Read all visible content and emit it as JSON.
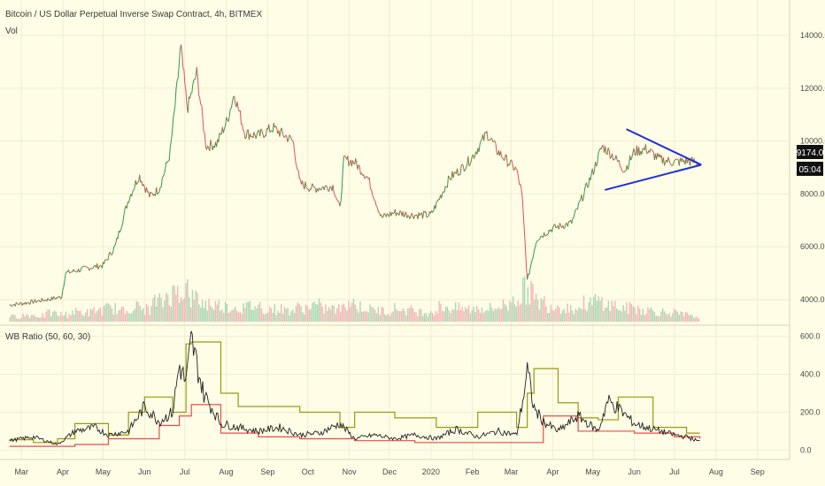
{
  "header": {
    "symbol_title": "Bitcoin / US Dollar Perpetual Inverse Swap Contract, 4h, BITMEX",
    "volume_label": "Vol",
    "indicator_label": "WB Ratio (50, 60, 30)"
  },
  "price_badge": {
    "value": "9174.0",
    "countdown": "05:04"
  },
  "colors": {
    "background": "#fffde6",
    "up": "#2e9e44",
    "down": "#e0505a",
    "trendline": "#1f2fd6",
    "indicator_main": "#222222",
    "indicator_upper": "#9a9a10",
    "indicator_lower": "#e84d4d"
  },
  "x_axis_labels": [
    "Mar",
    "Apr",
    "May",
    "Jun",
    "Jul",
    "Aug",
    "Sep",
    "Oct",
    "Nov",
    "Dec",
    "2020",
    "Feb",
    "Mar",
    "Apr",
    "May",
    "Jun",
    "Jul",
    "Aug",
    "Sep"
  ],
  "chart_data": [
    {
      "type": "line",
      "title": "Bitcoin / US Dollar Perpetual Inverse Swap Contract, 4h, BITMEX",
      "y_axis_ticks": [
        "4000.0",
        "6000.0",
        "8000.0",
        "10000.0",
        "12000.0",
        "14000.0"
      ],
      "ylim": [
        3300,
        14400
      ],
      "x": [
        "2019-02-20",
        "2019-03-01",
        "2019-03-20",
        "2019-03-31",
        "2019-04-03",
        "2019-04-20",
        "2019-05-01",
        "2019-05-10",
        "2019-05-20",
        "2019-05-28",
        "2019-06-05",
        "2019-06-12",
        "2019-06-20",
        "2019-06-26",
        "2019-06-28",
        "2019-07-03",
        "2019-07-10",
        "2019-07-17",
        "2019-07-25",
        "2019-08-02",
        "2019-08-07",
        "2019-08-15",
        "2019-08-25",
        "2019-09-05",
        "2019-09-20",
        "2019-09-25",
        "2019-10-05",
        "2019-10-20",
        "2019-10-25",
        "2019-10-28",
        "2019-11-05",
        "2019-11-15",
        "2019-11-25",
        "2019-12-05",
        "2019-12-18",
        "2020-01-01",
        "2020-01-15",
        "2020-01-25",
        "2020-02-01",
        "2020-02-12",
        "2020-02-20",
        "2020-03-05",
        "2020-03-09",
        "2020-03-12",
        "2020-03-13",
        "2020-03-20",
        "2020-04-01",
        "2020-04-15",
        "2020-04-30",
        "2020-05-08",
        "2020-05-15",
        "2020-05-25",
        "2020-06-01",
        "2020-06-10",
        "2020-06-20",
        "2020-07-01",
        "2020-07-10",
        "2020-07-20"
      ],
      "series": [
        {
          "values": [
            3800,
            3850,
            4000,
            4100,
            5000,
            5200,
            5300,
            6000,
            7800,
            8700,
            7900,
            8200,
            9500,
            12400,
            13600,
            11200,
            12600,
            9800,
            9900,
            10800,
            11800,
            10300,
            10200,
            10500,
            10000,
            8400,
            8200,
            8300,
            7400,
            9300,
            9200,
            8600,
            7100,
            7300,
            7200,
            7200,
            8600,
            9000,
            9400,
            10300,
            9600,
            8900,
            8000,
            5600,
            4700,
            6300,
            6700,
            6900,
            8700,
            9800,
            9500,
            8900,
            9600,
            9700,
            9300,
            9200,
            9250,
            9174
          ]
        }
      ],
      "annotations": [
        {
          "type": "trendline",
          "from": [
            "2020-05-26",
            10450
          ],
          "to": [
            "2020-07-21",
            9100
          ]
        },
        {
          "type": "trendline",
          "from": [
            "2020-05-10",
            8150
          ],
          "to": [
            "2020-07-21",
            9100
          ]
        }
      ]
    },
    {
      "type": "bar",
      "title": "Vol",
      "values_relative": [
        0.15,
        0.2,
        0.18,
        0.25,
        0.22,
        0.3,
        0.28,
        0.35,
        0.4,
        0.32,
        0.45,
        0.38,
        0.6,
        0.85,
        1.0,
        0.7,
        0.55,
        0.5,
        0.45,
        0.42,
        0.48,
        0.4,
        0.38,
        0.35,
        0.42,
        0.5,
        0.4,
        0.38,
        0.62,
        0.45,
        0.36,
        0.33,
        0.4,
        0.35,
        0.3,
        0.32,
        0.45,
        0.4,
        0.38,
        0.42,
        0.4,
        0.5,
        0.75,
        0.95,
        0.6,
        0.5,
        0.45,
        0.4,
        0.55,
        0.62,
        0.5,
        0.4,
        0.42,
        0.35,
        0.3,
        0.28,
        0.22,
        0.15
      ]
    },
    {
      "type": "line",
      "title": "WB Ratio (50, 60, 30)",
      "y_axis_ticks": [
        "0.0",
        "200.0",
        "400.0",
        "600.0"
      ],
      "ylim": [
        -40,
        640
      ],
      "x": [
        "2019-02-20",
        "2019-03-10",
        "2019-03-28",
        "2019-04-10",
        "2019-04-25",
        "2019-05-05",
        "2019-05-20",
        "2019-06-01",
        "2019-06-12",
        "2019-06-22",
        "2019-06-27",
        "2019-07-02",
        "2019-07-06",
        "2019-07-15",
        "2019-07-28",
        "2019-08-10",
        "2019-08-25",
        "2019-09-10",
        "2019-09-25",
        "2019-10-10",
        "2019-10-25",
        "2019-11-05",
        "2019-11-20",
        "2019-12-05",
        "2019-12-20",
        "2020-01-05",
        "2020-01-20",
        "2020-02-05",
        "2020-02-20",
        "2020-03-05",
        "2020-03-10",
        "2020-03-13",
        "2020-03-18",
        "2020-03-25",
        "2020-04-05",
        "2020-04-20",
        "2020-05-05",
        "2020-05-12",
        "2020-05-20",
        "2020-06-01",
        "2020-06-15",
        "2020-07-01",
        "2020-07-10",
        "2020-07-20"
      ],
      "series": [
        {
          "name": "",
          "values": [
            50,
            70,
            30,
            100,
            120,
            80,
            100,
            230,
            150,
            200,
            450,
            350,
            580,
            300,
            140,
            120,
            100,
            120,
            80,
            90,
            140,
            60,
            80,
            60,
            80,
            60,
            110,
            70,
            100,
            80,
            280,
            420,
            220,
            150,
            100,
            180,
            100,
            260,
            220,
            140,
            110,
            80,
            70,
            45
          ]
        },
        {
          "name": "",
          "values": [
            55,
            40,
            60,
            140,
            140,
            80,
            200,
            280,
            280,
            200,
            200,
            560,
            570,
            570,
            300,
            230,
            230,
            230,
            200,
            200,
            120,
            200,
            200,
            170,
            170,
            120,
            120,
            200,
            200,
            120,
            120,
            300,
            430,
            430,
            250,
            170,
            160,
            160,
            280,
            280,
            120,
            120,
            90,
            90
          ]
        },
        {
          "name": "",
          "values": [
            20,
            20,
            20,
            30,
            30,
            60,
            60,
            60,
            130,
            130,
            180,
            180,
            240,
            240,
            90,
            90,
            70,
            70,
            60,
            60,
            60,
            50,
            50,
            50,
            40,
            40,
            40,
            40,
            40,
            40,
            40,
            40,
            40,
            180,
            180,
            100,
            100,
            100,
            100,
            90,
            90,
            70,
            70,
            60
          ]
        }
      ]
    }
  ]
}
